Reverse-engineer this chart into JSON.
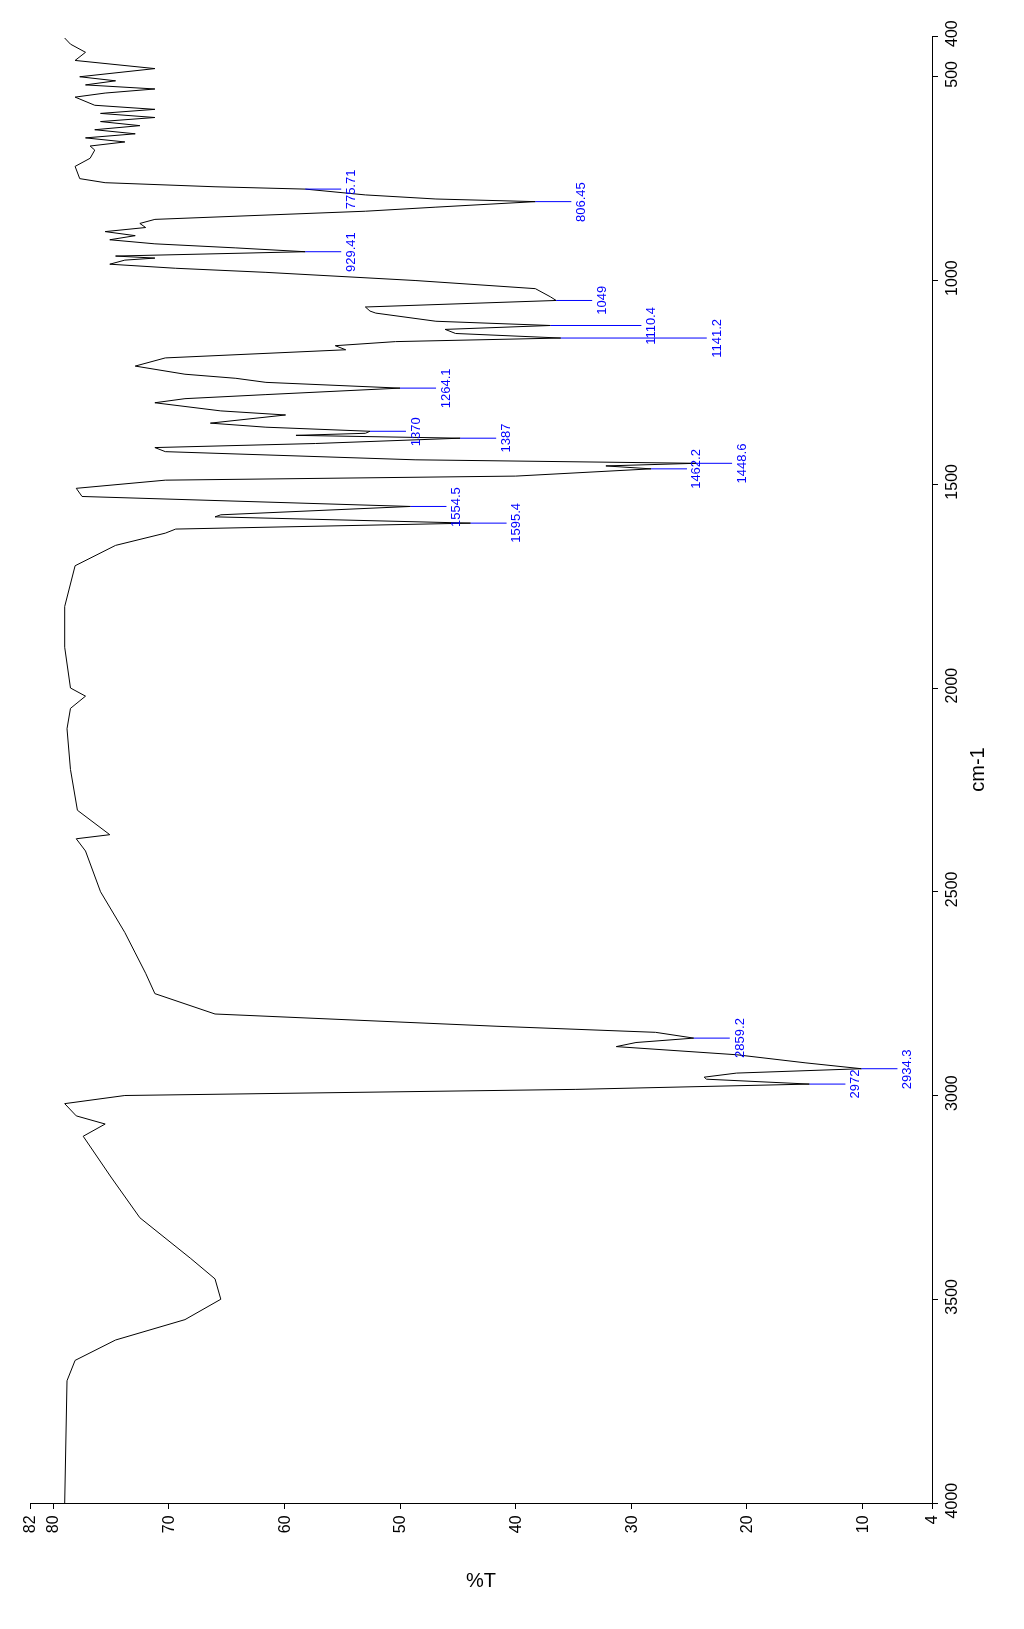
{
  "chart_data": {
    "type": "line",
    "orientation": "horizontal",
    "xlabel": "%T",
    "ylabel": "cm-1",
    "xlim": [
      82,
      4
    ],
    "xticks": [
      82,
      80,
      70,
      60,
      50,
      40,
      30,
      20,
      10,
      4
    ],
    "ylim": [
      4000,
      400
    ],
    "yticks": [
      4000,
      3500,
      3000,
      2500,
      2000,
      1500,
      1000,
      500,
      400
    ],
    "marker": "none",
    "line_style": "solid",
    "x": [
      4000,
      3700,
      3650,
      3600,
      3550,
      3500,
      3450,
      3400,
      3300,
      3200,
      3100,
      3070,
      3050,
      3020,
      3000,
      2985,
      2972,
      2960,
      2955,
      2945,
      2934.3,
      2920,
      2900,
      2880,
      2870,
      2859.2,
      2845,
      2830,
      2800,
      2750,
      2700,
      2650,
      2600,
      2500,
      2400,
      2370,
      2360,
      2300,
      2200,
      2100,
      2050,
      2020,
      2000,
      1900,
      1800,
      1700,
      1650,
      1620,
      1610,
      1595.4,
      1580,
      1575,
      1554.5,
      1530,
      1510,
      1490,
      1480,
      1462.2,
      1455,
      1448.6,
      1440,
      1420,
      1410,
      1400,
      1387,
      1380,
      1375,
      1370,
      1360,
      1350,
      1330,
      1320,
      1300,
      1290,
      1280,
      1264.1,
      1250,
      1240,
      1230,
      1210,
      1190,
      1170,
      1160,
      1150,
      1141.2,
      1130,
      1120,
      1110.4,
      1100,
      1080,
      1075,
      1065,
      1049,
      1040,
      1020,
      1000,
      980,
      970,
      960,
      950,
      945,
      940,
      929.41,
      920,
      910,
      900,
      890,
      880,
      870,
      860,
      850,
      830,
      820,
      806.45,
      800,
      790,
      775.71,
      770,
      760,
      750,
      720,
      700,
      680,
      670,
      660,
      650,
      640,
      630,
      620,
      610,
      600,
      590,
      580,
      570,
      550,
      540,
      530,
      520,
      510,
      500,
      480,
      460,
      440,
      420,
      405
    ],
    "series": [
      {
        "color": "#000000",
        "values": [
          79.0,
          78.8,
          78.1,
          74.6,
          68.6,
          65.5,
          66.0,
          68.1,
          72.5,
          75.0,
          77.4,
          75.5,
          78.0,
          79.0,
          73.8,
          34.8,
          14.6,
          23.5,
          23.7,
          20.9,
          10.1,
          14.9,
          20.9,
          31.3,
          29.6,
          24.6,
          27.9,
          41.7,
          66.0,
          71.2,
          72.0,
          72.9,
          73.8,
          75.9,
          77.2,
          78.0,
          75.1,
          77.9,
          78.5,
          78.8,
          78.5,
          77.2,
          78.5,
          79.0,
          79.0,
          78.1,
          74.6,
          70.3,
          69.4,
          43.9,
          66.0,
          65.5,
          49.1,
          77.5,
          78.0,
          70.3,
          40.0,
          28.3,
          32.2,
          24.4,
          48.7,
          70.3,
          71.2,
          57.3,
          44.8,
          59.0,
          53.0,
          52.6,
          61.6,
          66.4,
          59.9,
          65.5,
          71.2,
          68.6,
          61.6,
          50.0,
          61.6,
          64.2,
          68.6,
          72.9,
          70.3,
          54.7,
          55.6,
          50.4,
          36.1,
          45.2,
          46.1,
          37.0,
          46.9,
          52.1,
          52.6,
          53.0,
          36.5,
          37.0,
          38.3,
          48.7,
          61.6,
          69.4,
          75.1,
          73.8,
          71.2,
          74.6,
          58.2,
          64.2,
          71.2,
          75.1,
          72.9,
          75.5,
          72.0,
          72.5,
          71.2,
          53.0,
          46.9,
          38.3,
          46.9,
          53.0,
          58.2,
          66.0,
          75.5,
          77.7,
          78.1,
          76.8,
          76.4,
          76.8,
          73.8,
          77.2,
          72.9,
          76.4,
          72.5,
          75.9,
          71.2,
          75.9,
          71.2,
          76.4,
          78.1,
          75.5,
          71.2,
          77.2,
          74.6,
          77.7,
          71.2,
          78.1,
          77.2,
          78.5,
          79.0
        ]
      }
    ],
    "annotations": [
      {
        "text": "775.71",
        "y": 775.71,
        "x": 58.2
      },
      {
        "text": "806.45",
        "y": 806.45,
        "x": 38.3
      },
      {
        "text": "929.41",
        "y": 929.41,
        "x": 58.2
      },
      {
        "text": "1049",
        "y": 1049,
        "x": 36.5
      },
      {
        "text": "1110.4",
        "y": 1110.4,
        "x": 37.0
      },
      {
        "text": "1141.2",
        "y": 1141.2,
        "x": 36.1
      },
      {
        "text": "1264.1",
        "y": 1264.1,
        "x": 50.0
      },
      {
        "text": "1370",
        "y": 1370,
        "x": 52.6
      },
      {
        "text": "1387",
        "y": 1387,
        "x": 44.8
      },
      {
        "text": "1448.6",
        "y": 1448.6,
        "x": 24.4
      },
      {
        "text": "1462.2",
        "y": 1462.2,
        "x": 28.3
      },
      {
        "text": "1554.5",
        "y": 1554.5,
        "x": 49.1
      },
      {
        "text": "1595.4",
        "y": 1595.4,
        "x": 43.9
      },
      {
        "text": "2859.2",
        "y": 2859.2,
        "x": 24.6
      },
      {
        "text": "2934.3",
        "y": 2934.3,
        "x": 10.1
      },
      {
        "text": "2972",
        "y": 2972,
        "x": 14.6
      }
    ]
  }
}
